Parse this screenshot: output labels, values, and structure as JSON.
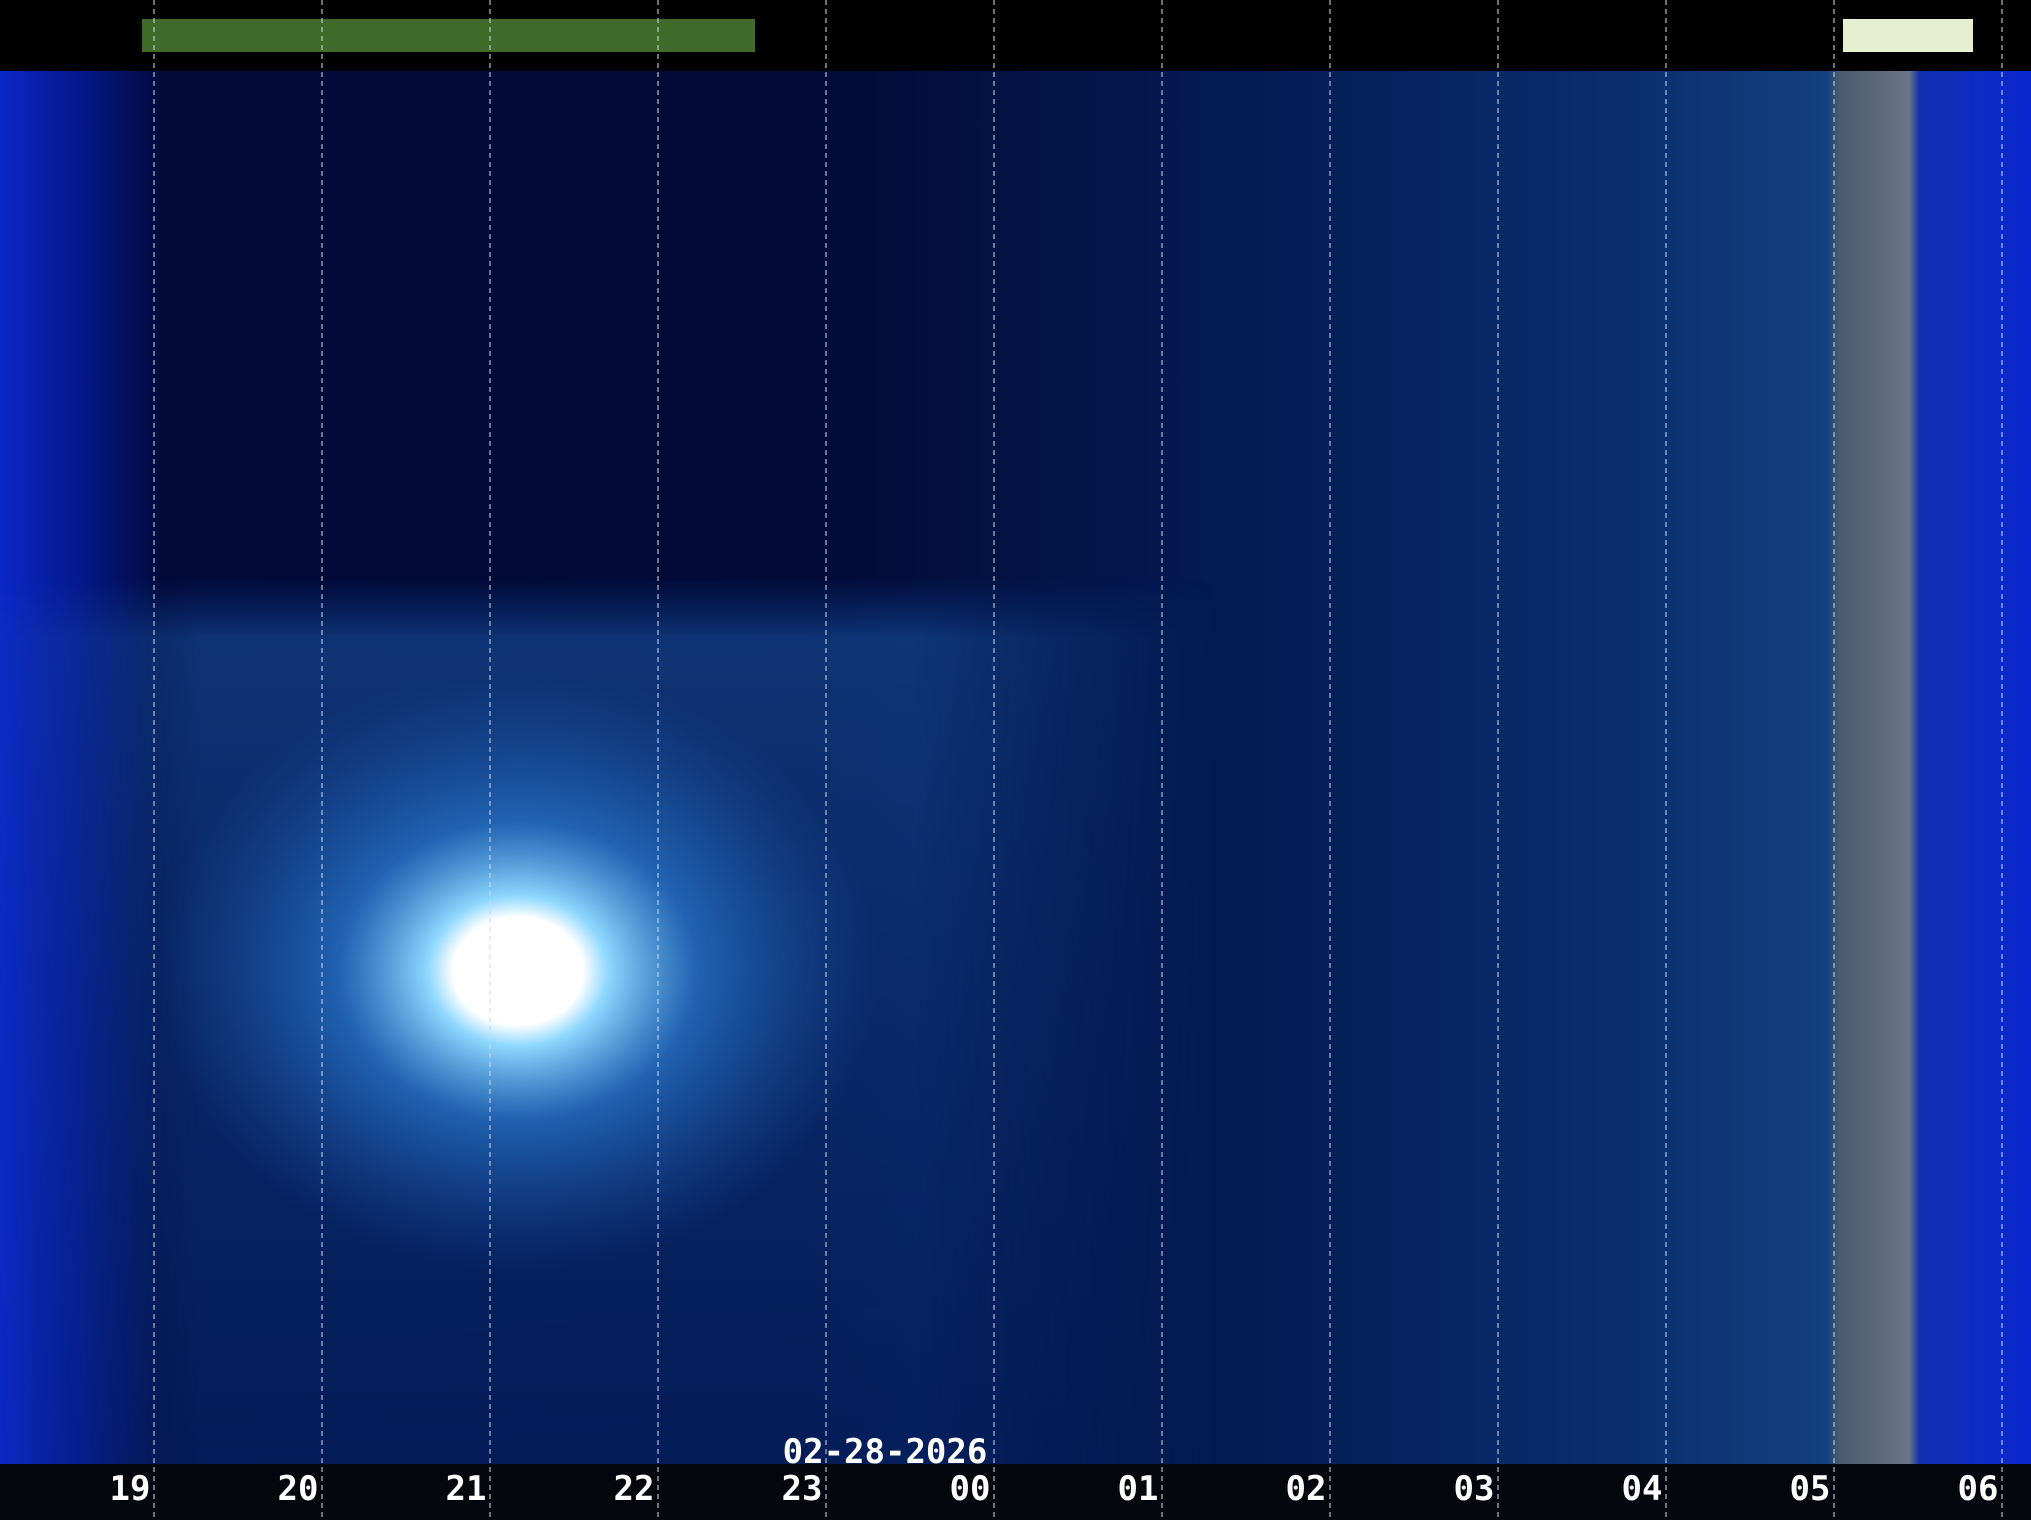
{
  "date": "02-28-2026",
  "hour_labels": [
    "19",
    "20",
    "21",
    "22",
    "23",
    "00",
    "01",
    "02",
    "03",
    "04",
    "05",
    "06"
  ]
}
